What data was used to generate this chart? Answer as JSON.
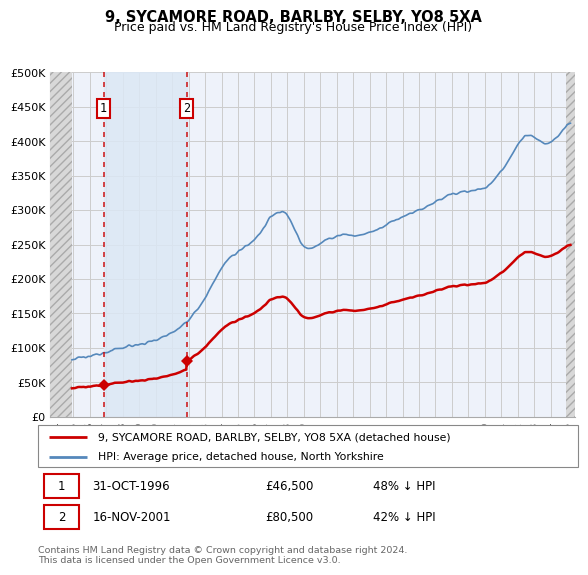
{
  "title": "9, SYCAMORE ROAD, BARLBY, SELBY, YO8 5XA",
  "subtitle": "Price paid vs. HM Land Registry's House Price Index (HPI)",
  "ylim": [
    0,
    500000
  ],
  "yticks": [
    0,
    50000,
    100000,
    150000,
    200000,
    250000,
    300000,
    350000,
    400000,
    450000,
    500000
  ],
  "ytick_labels": [
    "£0",
    "£50K",
    "£100K",
    "£150K",
    "£200K",
    "£250K",
    "£300K",
    "£350K",
    "£400K",
    "£450K",
    "£500K"
  ],
  "xlim_start": 1993.6,
  "xlim_end": 2025.5,
  "hatch_right_start": 2024.92,
  "sale1_x": 1996.833,
  "sale1_y": 46500,
  "sale2_x": 2001.877,
  "sale2_y": 80500,
  "sale1_label": "1",
  "sale2_label": "2",
  "legend_line1": "9, SYCAMORE ROAD, BARLBY, SELBY, YO8 5XA (detached house)",
  "legend_line2": "HPI: Average price, detached house, North Yorkshire",
  "footer": "Contains HM Land Registry data © Crown copyright and database right 2024.\nThis data is licensed under the Open Government Licence v3.0.",
  "red_color": "#cc0000",
  "blue_color": "#5588bb",
  "grid_color": "#cccccc",
  "background_plot": "#eef2fa",
  "hatch_color": "#d8d8d8"
}
